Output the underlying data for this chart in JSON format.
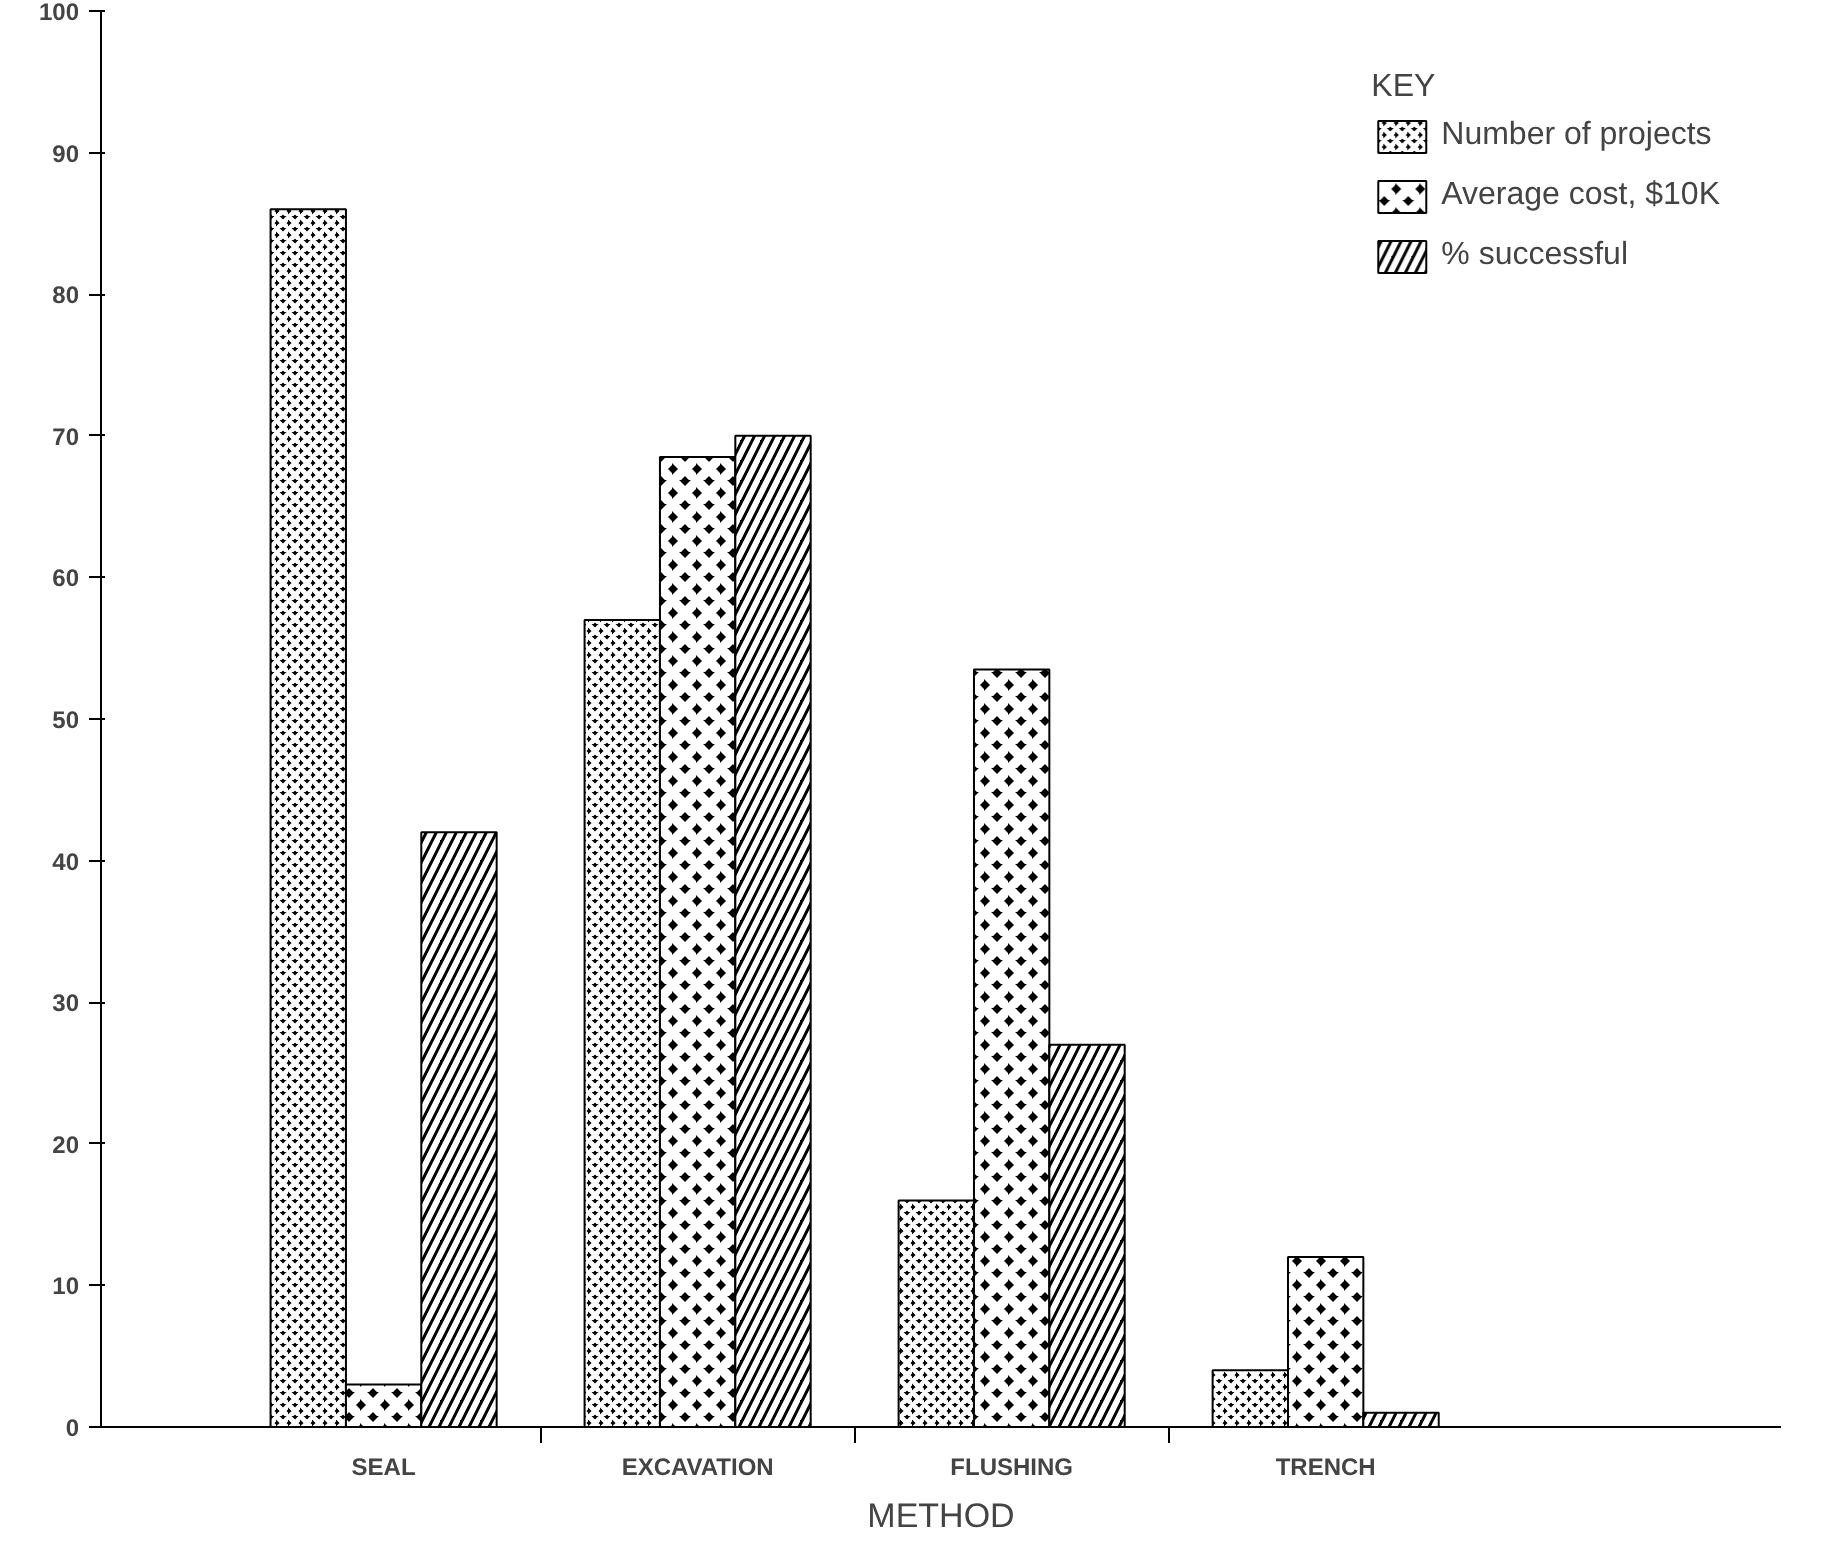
{
  "chart_data": {
    "type": "bar",
    "xlabel": "METHOD",
    "legend_title": "KEY",
    "categories": [
      "SEAL",
      "EXCAVATION",
      "FLUSHING",
      "TRENCH"
    ],
    "series": [
      {
        "name": "Number of projects",
        "color": "#000000",
        "values": [
          86,
          57,
          16,
          4
        ]
      },
      {
        "name": "Average cost, $10K",
        "color": "#000000",
        "values": [
          3,
          68.5,
          53.5,
          12
        ]
      },
      {
        "name": "% successful",
        "color": "#000000",
        "values": [
          42,
          70,
          27,
          1
        ]
      }
    ],
    "ylim": [
      0,
      100
    ],
    "yticks": [
      0,
      10,
      20,
      30,
      40,
      50,
      60,
      70,
      80,
      90,
      100
    ],
    "grid": false,
    "legend": "top right"
  }
}
